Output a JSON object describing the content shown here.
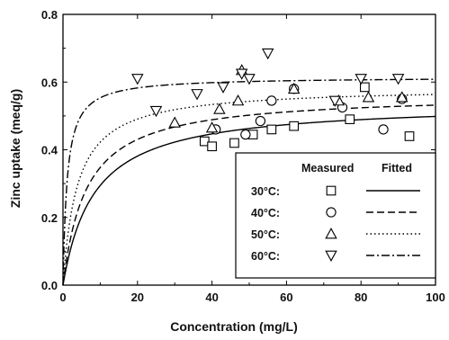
{
  "chart_data": {
    "type": "scatter",
    "xlabel": "Concentration (mg/L)",
    "ylabel": "Zinc uptake (meq/g)",
    "xlim": [
      0,
      100
    ],
    "ylim": [
      0,
      0.8
    ],
    "xticks": [
      0,
      20,
      40,
      60,
      80,
      100
    ],
    "xtick_labels": [
      "0",
      "20",
      "40",
      "60",
      "80",
      "100"
    ],
    "yticks": [
      0,
      0.2,
      0.4,
      0.6,
      0.8
    ],
    "ytick_labels": [
      "0.0",
      "0.2",
      "0.4",
      "0.6",
      "0.8"
    ],
    "grid": false,
    "legend": {
      "placement": "bottom-right",
      "header_measured": "Measured",
      "header_fitted": "Fitted"
    },
    "series": [
      {
        "name": "30°C:",
        "marker": "square",
        "line_style": "solid",
        "points": [
          [
            38,
            0.425
          ],
          [
            40,
            0.41
          ],
          [
            46,
            0.42
          ],
          [
            51,
            0.445
          ],
          [
            56,
            0.46
          ],
          [
            62,
            0.47
          ],
          [
            77,
            0.49
          ],
          [
            81,
            0.585
          ],
          [
            93,
            0.44
          ]
        ],
        "fit": {
          "qmax": 0.54,
          "K": 0.12
        }
      },
      {
        "name": "40°C:",
        "marker": "circle",
        "line_style": "dashed",
        "points": [
          [
            41,
            0.46
          ],
          [
            49,
            0.445
          ],
          [
            53,
            0.485
          ],
          [
            56,
            0.545
          ],
          [
            62,
            0.58
          ],
          [
            75,
            0.525
          ],
          [
            86,
            0.46
          ],
          [
            91,
            0.55
          ]
        ],
        "fit": {
          "qmax": 0.565,
          "K": 0.16
        }
      },
      {
        "name": "50°C:",
        "marker": "triangle-up",
        "line_style": "dotted",
        "points": [
          [
            30,
            0.48
          ],
          [
            40,
            0.465
          ],
          [
            42,
            0.52
          ],
          [
            47,
            0.545
          ],
          [
            48,
            0.635
          ],
          [
            62,
            0.58
          ],
          [
            74,
            0.545
          ],
          [
            82,
            0.555
          ],
          [
            91,
            0.555
          ]
        ],
        "fit": {
          "qmax": 0.585,
          "K": 0.26
        }
      },
      {
        "name": "60°C:",
        "marker": "triangle-down",
        "line_style": "dashdot",
        "points": [
          [
            20,
            0.61
          ],
          [
            25,
            0.515
          ],
          [
            36,
            0.565
          ],
          [
            43,
            0.585
          ],
          [
            48,
            0.625
          ],
          [
            50,
            0.61
          ],
          [
            55,
            0.685
          ],
          [
            73,
            0.545
          ],
          [
            80,
            0.61
          ],
          [
            90,
            0.61
          ]
        ],
        "fit": {
          "qmax": 0.615,
          "K": 0.9
        }
      }
    ]
  }
}
